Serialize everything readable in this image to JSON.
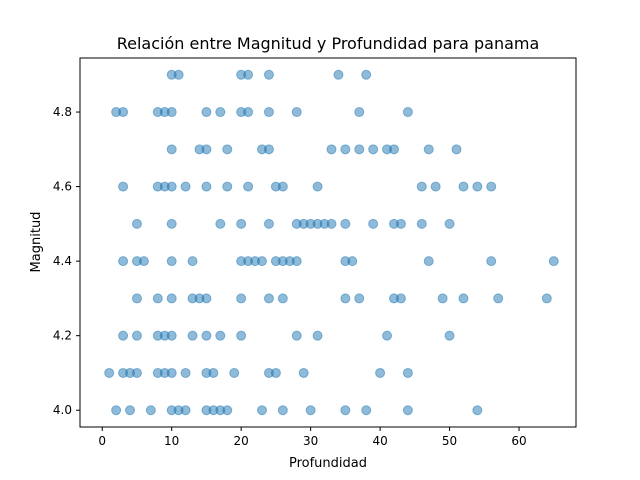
{
  "chart_data": {
    "type": "scatter",
    "title": "Relación entre Magnitud y Profundidad para panama",
    "xlabel": "Profundidad",
    "ylabel": "Magnitud",
    "xlim": [
      -3.2,
      68.2
    ],
    "ylim": [
      3.955,
      4.945
    ],
    "xticks": [
      0,
      10,
      20,
      30,
      40,
      50,
      60
    ],
    "yticks": [
      4.0,
      4.2,
      4.4,
      4.6,
      4.8
    ],
    "ytick_labels": [
      "4.0",
      "4.2",
      "4.4",
      "4.6",
      "4.8"
    ],
    "grid": false,
    "color": "#1f77b4",
    "alpha": 0.5,
    "points": [
      [
        10,
        4.9
      ],
      [
        11,
        4.9
      ],
      [
        20,
        4.9
      ],
      [
        21,
        4.9
      ],
      [
        24,
        4.9
      ],
      [
        34,
        4.9
      ],
      [
        38,
        4.9
      ],
      [
        2,
        4.8
      ],
      [
        3,
        4.8
      ],
      [
        8,
        4.8
      ],
      [
        9,
        4.8
      ],
      [
        10,
        4.8
      ],
      [
        15,
        4.8
      ],
      [
        17,
        4.8
      ],
      [
        20,
        4.8
      ],
      [
        21,
        4.8
      ],
      [
        24,
        4.8
      ],
      [
        28,
        4.8
      ],
      [
        37,
        4.8
      ],
      [
        44,
        4.8
      ],
      [
        10,
        4.7
      ],
      [
        14,
        4.7
      ],
      [
        15,
        4.7
      ],
      [
        18,
        4.7
      ],
      [
        23,
        4.7
      ],
      [
        24,
        4.7
      ],
      [
        33,
        4.7
      ],
      [
        35,
        4.7
      ],
      [
        37,
        4.7
      ],
      [
        39,
        4.7
      ],
      [
        41,
        4.7
      ],
      [
        42,
        4.7
      ],
      [
        47,
        4.7
      ],
      [
        51,
        4.7
      ],
      [
        3,
        4.6
      ],
      [
        8,
        4.6
      ],
      [
        9,
        4.6
      ],
      [
        10,
        4.6
      ],
      [
        12,
        4.6
      ],
      [
        15,
        4.6
      ],
      [
        18,
        4.6
      ],
      [
        21,
        4.6
      ],
      [
        25,
        4.6
      ],
      [
        26,
        4.6
      ],
      [
        31,
        4.6
      ],
      [
        46,
        4.6
      ],
      [
        48,
        4.6
      ],
      [
        52,
        4.6
      ],
      [
        54,
        4.6
      ],
      [
        56,
        4.6
      ],
      [
        5,
        4.5
      ],
      [
        10,
        4.5
      ],
      [
        17,
        4.5
      ],
      [
        20,
        4.5
      ],
      [
        24,
        4.5
      ],
      [
        28,
        4.5
      ],
      [
        29,
        4.5
      ],
      [
        30,
        4.5
      ],
      [
        31,
        4.5
      ],
      [
        32,
        4.5
      ],
      [
        33,
        4.5
      ],
      [
        35,
        4.5
      ],
      [
        39,
        4.5
      ],
      [
        42,
        4.5
      ],
      [
        43,
        4.5
      ],
      [
        46,
        4.5
      ],
      [
        50,
        4.5
      ],
      [
        3,
        4.4
      ],
      [
        5,
        4.4
      ],
      [
        6,
        4.4
      ],
      [
        10,
        4.4
      ],
      [
        13,
        4.4
      ],
      [
        20,
        4.4
      ],
      [
        21,
        4.4
      ],
      [
        22,
        4.4
      ],
      [
        23,
        4.4
      ],
      [
        25,
        4.4
      ],
      [
        26,
        4.4
      ],
      [
        27,
        4.4
      ],
      [
        28,
        4.4
      ],
      [
        35,
        4.4
      ],
      [
        36,
        4.4
      ],
      [
        47,
        4.4
      ],
      [
        56,
        4.4
      ],
      [
        65,
        4.4
      ],
      [
        5,
        4.3
      ],
      [
        8,
        4.3
      ],
      [
        10,
        4.3
      ],
      [
        13,
        4.3
      ],
      [
        14,
        4.3
      ],
      [
        15,
        4.3
      ],
      [
        20,
        4.3
      ],
      [
        24,
        4.3
      ],
      [
        26,
        4.3
      ],
      [
        35,
        4.3
      ],
      [
        37,
        4.3
      ],
      [
        42,
        4.3
      ],
      [
        43,
        4.3
      ],
      [
        49,
        4.3
      ],
      [
        52,
        4.3
      ],
      [
        57,
        4.3
      ],
      [
        64,
        4.3
      ],
      [
        3,
        4.2
      ],
      [
        5,
        4.2
      ],
      [
        8,
        4.2
      ],
      [
        9,
        4.2
      ],
      [
        10,
        4.2
      ],
      [
        13,
        4.2
      ],
      [
        15,
        4.2
      ],
      [
        17,
        4.2
      ],
      [
        20,
        4.2
      ],
      [
        28,
        4.2
      ],
      [
        31,
        4.2
      ],
      [
        41,
        4.2
      ],
      [
        50,
        4.2
      ],
      [
        1,
        4.1
      ],
      [
        3,
        4.1
      ],
      [
        4,
        4.1
      ],
      [
        5,
        4.1
      ],
      [
        8,
        4.1
      ],
      [
        9,
        4.1
      ],
      [
        10,
        4.1
      ],
      [
        12,
        4.1
      ],
      [
        15,
        4.1
      ],
      [
        16,
        4.1
      ],
      [
        19,
        4.1
      ],
      [
        24,
        4.1
      ],
      [
        25,
        4.1
      ],
      [
        29,
        4.1
      ],
      [
        40,
        4.1
      ],
      [
        44,
        4.1
      ],
      [
        2,
        4.0
      ],
      [
        4,
        4.0
      ],
      [
        7,
        4.0
      ],
      [
        10,
        4.0
      ],
      [
        11,
        4.0
      ],
      [
        12,
        4.0
      ],
      [
        15,
        4.0
      ],
      [
        16,
        4.0
      ],
      [
        17,
        4.0
      ],
      [
        18,
        4.0
      ],
      [
        23,
        4.0
      ],
      [
        26,
        4.0
      ],
      [
        30,
        4.0
      ],
      [
        35,
        4.0
      ],
      [
        38,
        4.0
      ],
      [
        44,
        4.0
      ],
      [
        54,
        4.0
      ]
    ]
  }
}
